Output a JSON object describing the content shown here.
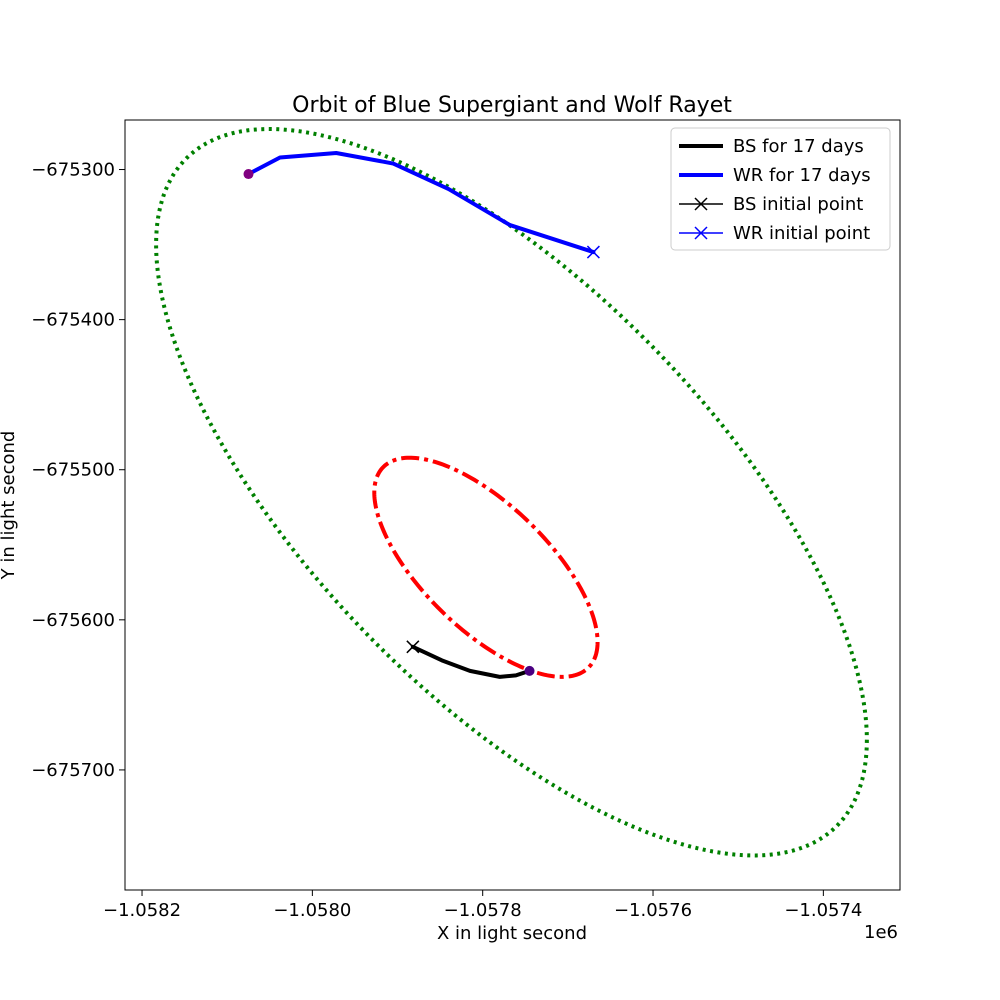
{
  "chart_data": {
    "type": "line",
    "title": "Orbit of Blue Supergiant and Wolf Rayet",
    "xlabel": "X in light second",
    "ylabel": "Y in light second",
    "x_offset_label": "1e6",
    "xlim": [
      -1.05822,
      -1.05731
    ],
    "ylim": [
      -675780,
      -675267
    ],
    "xticks": [
      -1.0582,
      -1.058,
      -1.0578,
      -1.0576,
      -1.0574
    ],
    "xtick_labels": [
      "−1.0582",
      "−1.0580",
      "−1.0578",
      "−1.0576",
      "−1.0574"
    ],
    "yticks": [
      -675300,
      -675400,
      -675500,
      -675600,
      -675700
    ],
    "ytick_labels": [
      "−675300",
      "−675400",
      "−675500",
      "−675600",
      "−675700"
    ],
    "legend_position": "upper right",
    "legend": [
      {
        "label": "BS for 17 days",
        "color": "#000000",
        "marker": "line"
      },
      {
        "label": "WR for 17 days",
        "color": "#0000ff",
        "marker": "line"
      },
      {
        "label": "BS initial point",
        "color": "#000000",
        "marker": "x"
      },
      {
        "label": "WR initial point",
        "color": "#0000ff",
        "marker": "x"
      }
    ],
    "orbits": [
      {
        "name": "WR full orbit",
        "style": "dotted",
        "color": "#008000",
        "center": [
          -1.0577662,
          -675515
        ],
        "half_range_x": 0.0004173,
        "half_range_y": 242,
        "phase_shift_deg": 133
      },
      {
        "name": "BS full orbit",
        "style": "dashdot",
        "color": "#ff0000",
        "center": [
          -1.0577962,
          -675565
        ],
        "half_range_x": 0.0001311,
        "half_range_y": 73,
        "phase_shift_deg": 133
      }
    ],
    "segments": [
      {
        "name": "BS for 17 days",
        "color": "#000000",
        "points": [
          [
            -1.057882,
            -675618
          ],
          [
            -1.057848,
            -675627
          ],
          [
            -1.057815,
            -675634
          ],
          [
            -1.05778,
            -675638
          ],
          [
            -1.057761,
            -675637
          ],
          [
            -1.057745,
            -675634
          ]
        ]
      },
      {
        "name": "WR for 17 days",
        "color": "#0000ff",
        "points": [
          [
            -1.058075,
            -675303
          ],
          [
            -1.058038,
            -675292
          ],
          [
            -1.057972,
            -675289
          ],
          [
            -1.057905,
            -675296
          ],
          [
            -1.05784,
            -675313
          ],
          [
            -1.057768,
            -675337
          ],
          [
            -1.05767,
            -675355
          ]
        ]
      }
    ],
    "initial_points": [
      {
        "name": "BS initial point",
        "x": -1.057882,
        "y": -675618,
        "color": "#000000"
      },
      {
        "name": "WR initial point",
        "x": -1.05767,
        "y": -675355,
        "color": "#0000ff"
      }
    ],
    "final_points": [
      {
        "x": -1.057745,
        "y": -675634,
        "color": "#4b0082"
      },
      {
        "x": -1.058075,
        "y": -675303,
        "color": "#800080"
      }
    ]
  }
}
